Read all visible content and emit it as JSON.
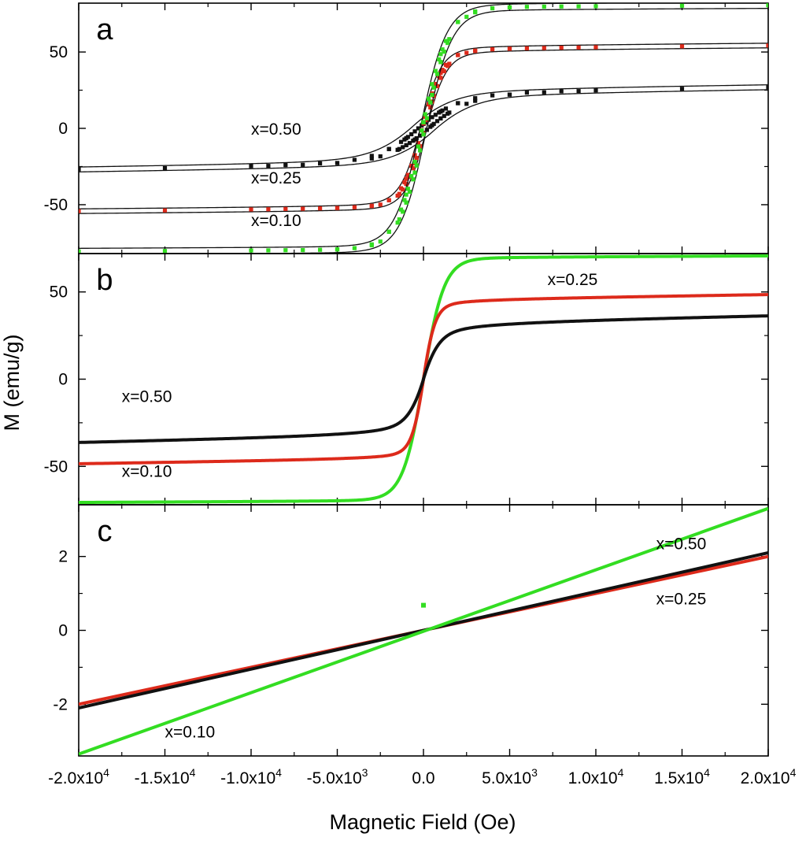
{
  "chart_data": {
    "type": "line",
    "xlabel": "Magnetic Field (Oe)",
    "ylabel": "M (emu/g)",
    "xlim": [
      -20000,
      20000
    ],
    "x_ticks": [
      {
        "value": -20000,
        "mant": "-2.0x10",
        "exp": "4"
      },
      {
        "value": -15000,
        "mant": "-1.5x10",
        "exp": "4"
      },
      {
        "value": -10000,
        "mant": "-1.0x10",
        "exp": "4"
      },
      {
        "value": -5000,
        "mant": "-5.0x10",
        "exp": "3"
      },
      {
        "value": 0,
        "mant": "0.0",
        "exp": ""
      },
      {
        "value": 5000,
        "mant": "5.0x10",
        "exp": "3"
      },
      {
        "value": 10000,
        "mant": "1.0x10",
        "exp": "4"
      },
      {
        "value": 15000,
        "mant": "1.5x10",
        "exp": "4"
      },
      {
        "value": 20000,
        "mant": "2.0x10",
        "exp": "4"
      }
    ],
    "panels": [
      {
        "id": "a",
        "letter": "a",
        "ylim": [
          -82,
          82
        ],
        "yticks": [
          50,
          0,
          -50
        ],
        "series": [
          {
            "name": "x=0.50",
            "color": "#111111",
            "Ms": 25,
            "h0": 2500,
            "a": 0.32,
            "slope": 0.00014,
            "hyst_w": 600,
            "hyst_h": 1.5,
            "markers": true,
            "marker_color": "#111111"
          },
          {
            "name": "x=0.25",
            "color": "#111111",
            "Ms": 53,
            "h0": 1200,
            "a": 0.12,
            "slope": 8e-05,
            "hyst_w": 150,
            "hyst_h": 1.5,
            "markers": true,
            "marker_color": "#dd2a1b"
          },
          {
            "name": "x=0.10",
            "color": "#111111",
            "Ms": 80,
            "h0": 1500,
            "a": 0.04,
            "slope": 4e-05,
            "hyst_w": 150,
            "hyst_h": 2.0,
            "markers": true,
            "marker_color": "#33dd22"
          }
        ],
        "labels": [
          {
            "text": "x=0.50",
            "x": -10000,
            "y": -4
          },
          {
            "text": "x=0.25",
            "x": -10000,
            "y": -36
          },
          {
            "text": "x=0.10",
            "x": -10000,
            "y": -64
          }
        ]
      },
      {
        "id": "b",
        "letter": "b",
        "ylim": [
          -72,
          72
        ],
        "yticks": [
          50,
          0,
          -50
        ],
        "series": [
          {
            "name": "x=0.10",
            "color": "#33dd22",
            "Ms": 70,
            "h0": 1200,
            "a": 0.035,
            "slope": 4e-05
          },
          {
            "name": "x=0.25",
            "color": "#dd2a1b",
            "Ms": 46,
            "h0": 700,
            "a": 0.2,
            "slope": 0.00014
          },
          {
            "name": "x=0.50",
            "color": "#111111",
            "Ms": 33,
            "h0": 1000,
            "a": 0.45,
            "slope": 0.0002
          }
        ],
        "labels": [
          {
            "text": "x=0.25",
            "x": 7200,
            "y": 54
          },
          {
            "text": "x=0.50",
            "x": -17500,
            "y": -13
          },
          {
            "text": "x=0.10",
            "x": -17500,
            "y": -56
          }
        ]
      },
      {
        "id": "c",
        "letter": "c",
        "ylim": [
          -3.4,
          3.4
        ],
        "yticks": [
          2,
          0,
          -2
        ],
        "series": [
          {
            "name": "x=0.25",
            "color": "#dd2a1b",
            "type": "linear",
            "y_at_min": -2.0,
            "y_at_max": 2.0
          },
          {
            "name": "x=0.50",
            "color": "#111111",
            "type": "linear",
            "y_at_min": -2.1,
            "y_at_max": 2.1
          },
          {
            "name": "x=0.10",
            "color": "#33dd22",
            "type": "linear",
            "y_at_min": -3.35,
            "y_at_max": 3.3
          }
        ],
        "outlier": {
          "x": 0,
          "y": 0.68,
          "color": "#33dd22"
        },
        "labels": [
          {
            "text": "x=0.50",
            "x": 13500,
            "y": 2.2
          },
          {
            "text": "x=0.25",
            "x": 13500,
            "y": 0.7
          },
          {
            "text": "x=0.10",
            "x": -15000,
            "y": -2.9
          }
        ]
      }
    ]
  }
}
